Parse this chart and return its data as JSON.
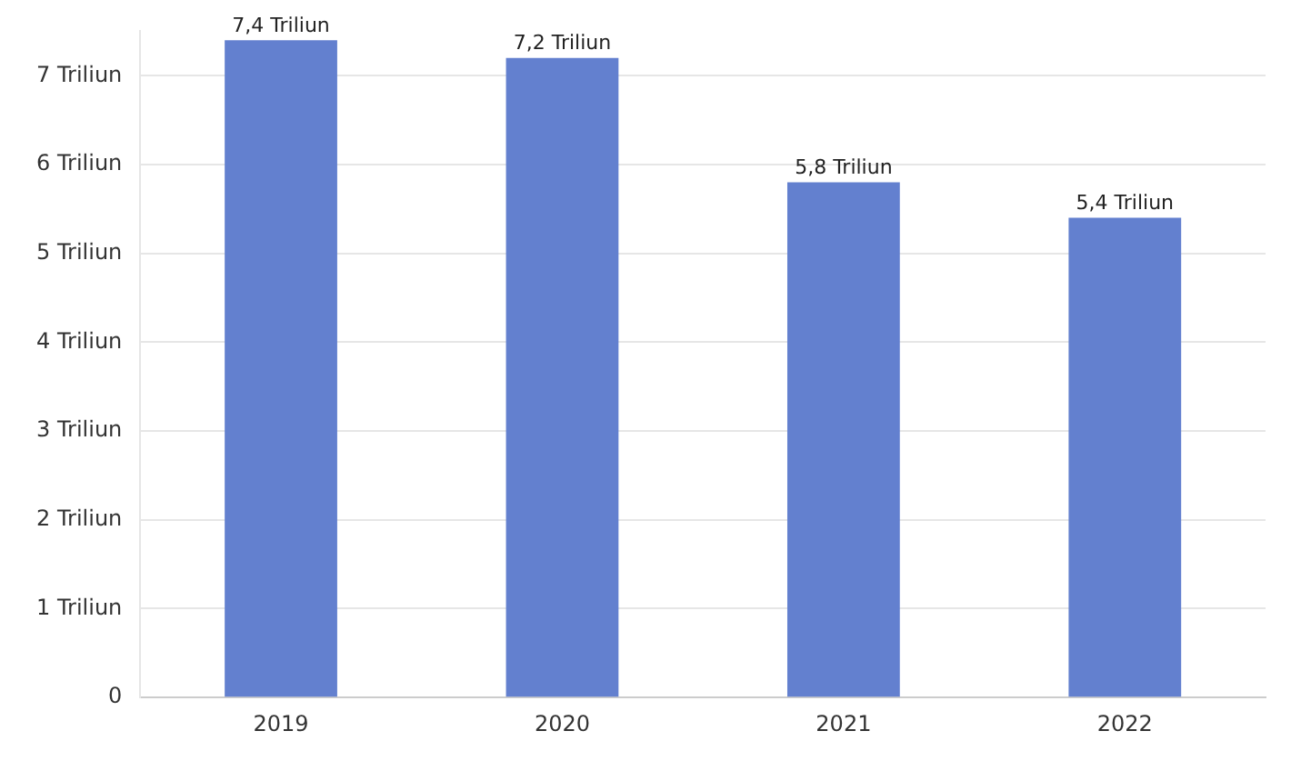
{
  "chart_data": {
    "type": "bar",
    "categories": [
      "2019",
      "2020",
      "2021",
      "2022"
    ],
    "values": [
      7.4,
      7.2,
      5.8,
      5.4
    ],
    "value_labels": [
      "7,4 Triliun",
      "7,2 Triliun",
      "5,8 Triliun",
      "5,4 Triliun"
    ],
    "color": "#6380cf",
    "ylim": [
      0,
      7.5
    ],
    "yticks": [
      0,
      {
        "value": 1,
        "label": "1 Triliun"
      },
      {
        "value": 2,
        "label": "2 Triliun"
      },
      {
        "value": 3,
        "label": "3 Triliun"
      },
      {
        "value": 4,
        "label": "4 Triliun"
      },
      {
        "value": 5,
        "label": "5 Triliun"
      },
      {
        "value": 6,
        "label": "6 Triliun"
      },
      {
        "value": 7,
        "label": "7 Triliun"
      }
    ],
    "grid": "y",
    "legend": false
  }
}
